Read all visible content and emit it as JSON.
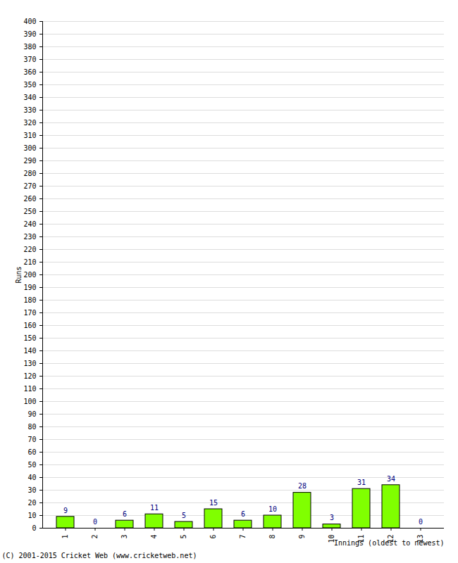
{
  "chart_data": {
    "type": "bar",
    "categories": [
      "1",
      "2",
      "3",
      "4",
      "5",
      "6",
      "7",
      "8",
      "9",
      "10",
      "11",
      "12",
      "13"
    ],
    "values": [
      9,
      0,
      6,
      11,
      5,
      15,
      6,
      10,
      28,
      3,
      31,
      34,
      0
    ],
    "color": "#80ff00",
    "x_label": "Innings (oldest to newest)",
    "y_label": "Runs",
    "caption": "(C) 2001-2015 Cricket Web (www.cricketweb.net)",
    "ylim": [
      0,
      400
    ],
    "yticks": [
      0,
      10,
      20,
      30,
      40,
      50,
      60,
      70,
      80,
      90,
      100,
      110,
      120,
      130,
      140,
      150,
      160,
      170,
      180,
      190,
      200,
      210,
      220,
      230,
      240,
      250,
      260,
      270,
      280,
      290,
      300,
      310,
      320,
      330,
      340,
      350,
      360,
      370,
      380,
      390,
      400
    ],
    "grid": true,
    "data_labels": true
  }
}
